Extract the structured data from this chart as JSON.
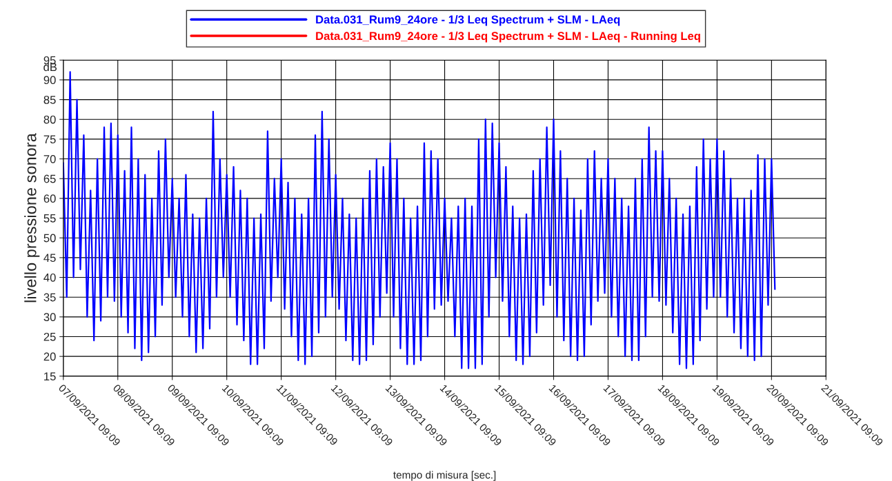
{
  "chart_data": {
    "type": "line",
    "xlabel": "tempo di misura [sec.]",
    "ylabel": "livello pressione sonora",
    "annotations": [
      "dB"
    ],
    "xlim": [
      "2021-09-07T09:09",
      "2021-09-21T09:09"
    ],
    "xticks": [
      {
        "value": "2021-09-07T09:09",
        "label": "07/09/2021 09:09"
      },
      {
        "value": "2021-09-08T09:09",
        "label": "08/09/2021 09:09"
      },
      {
        "value": "2021-09-09T09:09",
        "label": "09/09/2021 09:09"
      },
      {
        "value": "2021-09-10T09:09",
        "label": "10/09/2021 09:09"
      },
      {
        "value": "2021-09-11T09:09",
        "label": "11/09/2021 09:09"
      },
      {
        "value": "2021-09-12T09:09",
        "label": "12/09/2021 09:09"
      },
      {
        "value": "2021-09-13T09:09",
        "label": "13/09/2021 09:09"
      },
      {
        "value": "2021-09-14T09:09",
        "label": "14/09/2021 09:09"
      },
      {
        "value": "2021-09-15T09:09",
        "label": "15/09/2021 09:09"
      },
      {
        "value": "2021-09-16T09:09",
        "label": "16/09/2021 09:09"
      },
      {
        "value": "2021-09-17T09:09",
        "label": "17/09/2021 09:09"
      },
      {
        "value": "2021-09-18T09:09",
        "label": "18/09/2021 09:09"
      },
      {
        "value": "2021-09-19T09:09",
        "label": "19/09/2021 09:09"
      },
      {
        "value": "2021-09-20T09:09",
        "label": "20/09/2021 09:09"
      },
      {
        "value": "2021-09-21T09:09",
        "label": "21/09/2021 09:09"
      }
    ],
    "ylim": [
      15,
      95
    ],
    "yticks": [
      15,
      20,
      25,
      30,
      35,
      40,
      45,
      50,
      55,
      60,
      65,
      70,
      75,
      80,
      85,
      90,
      95
    ],
    "grid": true,
    "legend": "top",
    "series": [
      {
        "name": "Data.031_Rum9_24ore - 1/3 Leq Spectrum + SLM - LAeq",
        "color": "#0000ff",
        "x": [
          "2021-09-07T09:09",
          "2021-09-07T10:39",
          "2021-09-07T12:09",
          "2021-09-07T13:39",
          "2021-09-07T15:09",
          "2021-09-07T16:39",
          "2021-09-07T18:09",
          "2021-09-07T19:39",
          "2021-09-07T21:09",
          "2021-09-07T22:39",
          "2021-09-08T00:09",
          "2021-09-08T01:39",
          "2021-09-08T03:09",
          "2021-09-08T04:39",
          "2021-09-08T06:09",
          "2021-09-08T07:39",
          "2021-09-08T09:09",
          "2021-09-08T10:39",
          "2021-09-08T12:09",
          "2021-09-08T13:39",
          "2021-09-08T15:09",
          "2021-09-08T16:39",
          "2021-09-08T18:09",
          "2021-09-08T19:39",
          "2021-09-08T21:09",
          "2021-09-08T22:39",
          "2021-09-09T00:09",
          "2021-09-09T01:39",
          "2021-09-09T03:09",
          "2021-09-09T04:39",
          "2021-09-09T06:09",
          "2021-09-09T07:39",
          "2021-09-09T09:09",
          "2021-09-09T10:39",
          "2021-09-09T12:09",
          "2021-09-09T13:39",
          "2021-09-09T15:09",
          "2021-09-09T16:39",
          "2021-09-09T18:09",
          "2021-09-09T19:39",
          "2021-09-09T21:09",
          "2021-09-09T22:39",
          "2021-09-10T00:09",
          "2021-09-10T01:39",
          "2021-09-10T03:09",
          "2021-09-10T04:39",
          "2021-09-10T06:09",
          "2021-09-10T07:39",
          "2021-09-10T09:09",
          "2021-09-10T10:39",
          "2021-09-10T12:09",
          "2021-09-10T13:39",
          "2021-09-10T15:09",
          "2021-09-10T16:39",
          "2021-09-10T18:09",
          "2021-09-10T19:39",
          "2021-09-10T21:09",
          "2021-09-10T22:39",
          "2021-09-11T00:09",
          "2021-09-11T01:39",
          "2021-09-11T03:09",
          "2021-09-11T04:39",
          "2021-09-11T06:09",
          "2021-09-11T07:39",
          "2021-09-11T09:09",
          "2021-09-11T10:39",
          "2021-09-11T12:09",
          "2021-09-11T13:39",
          "2021-09-11T15:09",
          "2021-09-11T16:39",
          "2021-09-11T18:09",
          "2021-09-11T19:39",
          "2021-09-11T21:09",
          "2021-09-11T22:39",
          "2021-09-12T00:09",
          "2021-09-12T01:39",
          "2021-09-12T03:09",
          "2021-09-12T04:39",
          "2021-09-12T06:09",
          "2021-09-12T07:39",
          "2021-09-12T09:09",
          "2021-09-12T10:39",
          "2021-09-12T12:09",
          "2021-09-12T13:39",
          "2021-09-12T15:09",
          "2021-09-12T16:39",
          "2021-09-12T18:09",
          "2021-09-12T19:39",
          "2021-09-12T21:09",
          "2021-09-12T22:39",
          "2021-09-13T00:09",
          "2021-09-13T01:39",
          "2021-09-13T03:09",
          "2021-09-13T04:39",
          "2021-09-13T06:09",
          "2021-09-13T07:39",
          "2021-09-13T09:09",
          "2021-09-13T10:39",
          "2021-09-13T12:09",
          "2021-09-13T13:39",
          "2021-09-13T15:09",
          "2021-09-13T16:39",
          "2021-09-13T18:09",
          "2021-09-13T19:39",
          "2021-09-13T21:09",
          "2021-09-13T22:39",
          "2021-09-14T00:09",
          "2021-09-14T01:39",
          "2021-09-14T03:09",
          "2021-09-14T04:39",
          "2021-09-14T06:09",
          "2021-09-14T07:39",
          "2021-09-14T09:09",
          "2021-09-14T10:39",
          "2021-09-14T12:09",
          "2021-09-14T13:39",
          "2021-09-14T15:09",
          "2021-09-14T16:39",
          "2021-09-14T18:09",
          "2021-09-14T19:39",
          "2021-09-14T21:09",
          "2021-09-14T22:39",
          "2021-09-15T00:09",
          "2021-09-15T01:39",
          "2021-09-15T03:09",
          "2021-09-15T04:39",
          "2021-09-15T06:09",
          "2021-09-15T07:39",
          "2021-09-15T09:09",
          "2021-09-15T10:39",
          "2021-09-15T12:09",
          "2021-09-15T13:39",
          "2021-09-15T15:09",
          "2021-09-15T16:39",
          "2021-09-15T18:09",
          "2021-09-15T19:39",
          "2021-09-15T21:09",
          "2021-09-15T22:39",
          "2021-09-16T00:09",
          "2021-09-16T01:39",
          "2021-09-16T03:09",
          "2021-09-16T04:39",
          "2021-09-16T06:09",
          "2021-09-16T07:39",
          "2021-09-16T09:09",
          "2021-09-16T10:39",
          "2021-09-16T12:09",
          "2021-09-16T13:39",
          "2021-09-16T15:09",
          "2021-09-16T16:39",
          "2021-09-16T18:09",
          "2021-09-16T19:39",
          "2021-09-16T21:09",
          "2021-09-16T22:39",
          "2021-09-17T00:09",
          "2021-09-17T01:39",
          "2021-09-17T03:09",
          "2021-09-17T04:39",
          "2021-09-17T06:09",
          "2021-09-17T07:39",
          "2021-09-17T09:09",
          "2021-09-17T10:39",
          "2021-09-17T12:09",
          "2021-09-17T13:39",
          "2021-09-17T15:09",
          "2021-09-17T16:39",
          "2021-09-17T18:09",
          "2021-09-17T19:39",
          "2021-09-17T21:09",
          "2021-09-17T22:39",
          "2021-09-18T00:09",
          "2021-09-18T01:39",
          "2021-09-18T03:09",
          "2021-09-18T04:39",
          "2021-09-18T06:09",
          "2021-09-18T07:39",
          "2021-09-18T09:09",
          "2021-09-18T10:39",
          "2021-09-18T12:09",
          "2021-09-18T13:39",
          "2021-09-18T15:09",
          "2021-09-18T16:39",
          "2021-09-18T18:09",
          "2021-09-18T19:39",
          "2021-09-18T21:09",
          "2021-09-18T22:39",
          "2021-09-19T00:09",
          "2021-09-19T01:39",
          "2021-09-19T03:09",
          "2021-09-19T04:39",
          "2021-09-19T06:09",
          "2021-09-19T07:39",
          "2021-09-19T09:09",
          "2021-09-19T10:39",
          "2021-09-19T12:09",
          "2021-09-19T13:39",
          "2021-09-19T15:09",
          "2021-09-19T16:39",
          "2021-09-19T18:09",
          "2021-09-19T19:39",
          "2021-09-19T21:09",
          "2021-09-19T22:39",
          "2021-09-20T00:09",
          "2021-09-20T01:39",
          "2021-09-20T03:09",
          "2021-09-20T04:39",
          "2021-09-20T06:09",
          "2021-09-20T07:39",
          "2021-09-20T09:09",
          "2021-09-20T10:39"
        ],
        "values": [
          69,
          35,
          92,
          40,
          85,
          42,
          76,
          30,
          62,
          24,
          70,
          29,
          78,
          35,
          79,
          34,
          76,
          30,
          67,
          26,
          78,
          22,
          70,
          19,
          66,
          21,
          60,
          25,
          72,
          33,
          75,
          40,
          65,
          35,
          60,
          30,
          66,
          25,
          56,
          21,
          55,
          22,
          60,
          27,
          82,
          35,
          70,
          40,
          66,
          35,
          68,
          28,
          62,
          24,
          60,
          18,
          55,
          18,
          56,
          22,
          77,
          34,
          65,
          40,
          70,
          32,
          64,
          25,
          60,
          19,
          56,
          18,
          60,
          20,
          76,
          26,
          82,
          30,
          75,
          35,
          66,
          32,
          60,
          24,
          56,
          19,
          55,
          18,
          60,
          19,
          67,
          23,
          70,
          30,
          68,
          36,
          74,
          30,
          70,
          22,
          60,
          18,
          55,
          18,
          58,
          19,
          74,
          25,
          72,
          32,
          70,
          33,
          60,
          34,
          55,
          25,
          58,
          17,
          60,
          17,
          58,
          17,
          75,
          18,
          80,
          30,
          79,
          40,
          74,
          34,
          68,
          25,
          58,
          19,
          55,
          18,
          56,
          20,
          67,
          26,
          70,
          33,
          78,
          38,
          80,
          30,
          72,
          24,
          65,
          20,
          60,
          19,
          57,
          20,
          70,
          28,
          72,
          34,
          65,
          36,
          70,
          30,
          65,
          25,
          60,
          20,
          58,
          19,
          65,
          19,
          70,
          25,
          78,
          35,
          72,
          34,
          72,
          33,
          65,
          26,
          60,
          18,
          56,
          17,
          58,
          18,
          68,
          24,
          75,
          32,
          70,
          35,
          75,
          35,
          72,
          30,
          65,
          26,
          60,
          22,
          60,
          20,
          62,
          19,
          71,
          20,
          70,
          33,
          70,
          37
        ]
      },
      {
        "name": "Data.031_Rum9_24ore - 1/3 Leq Spectrum + SLM - LAeq - Running Leq",
        "color": "#ff0000"
      }
    ]
  }
}
